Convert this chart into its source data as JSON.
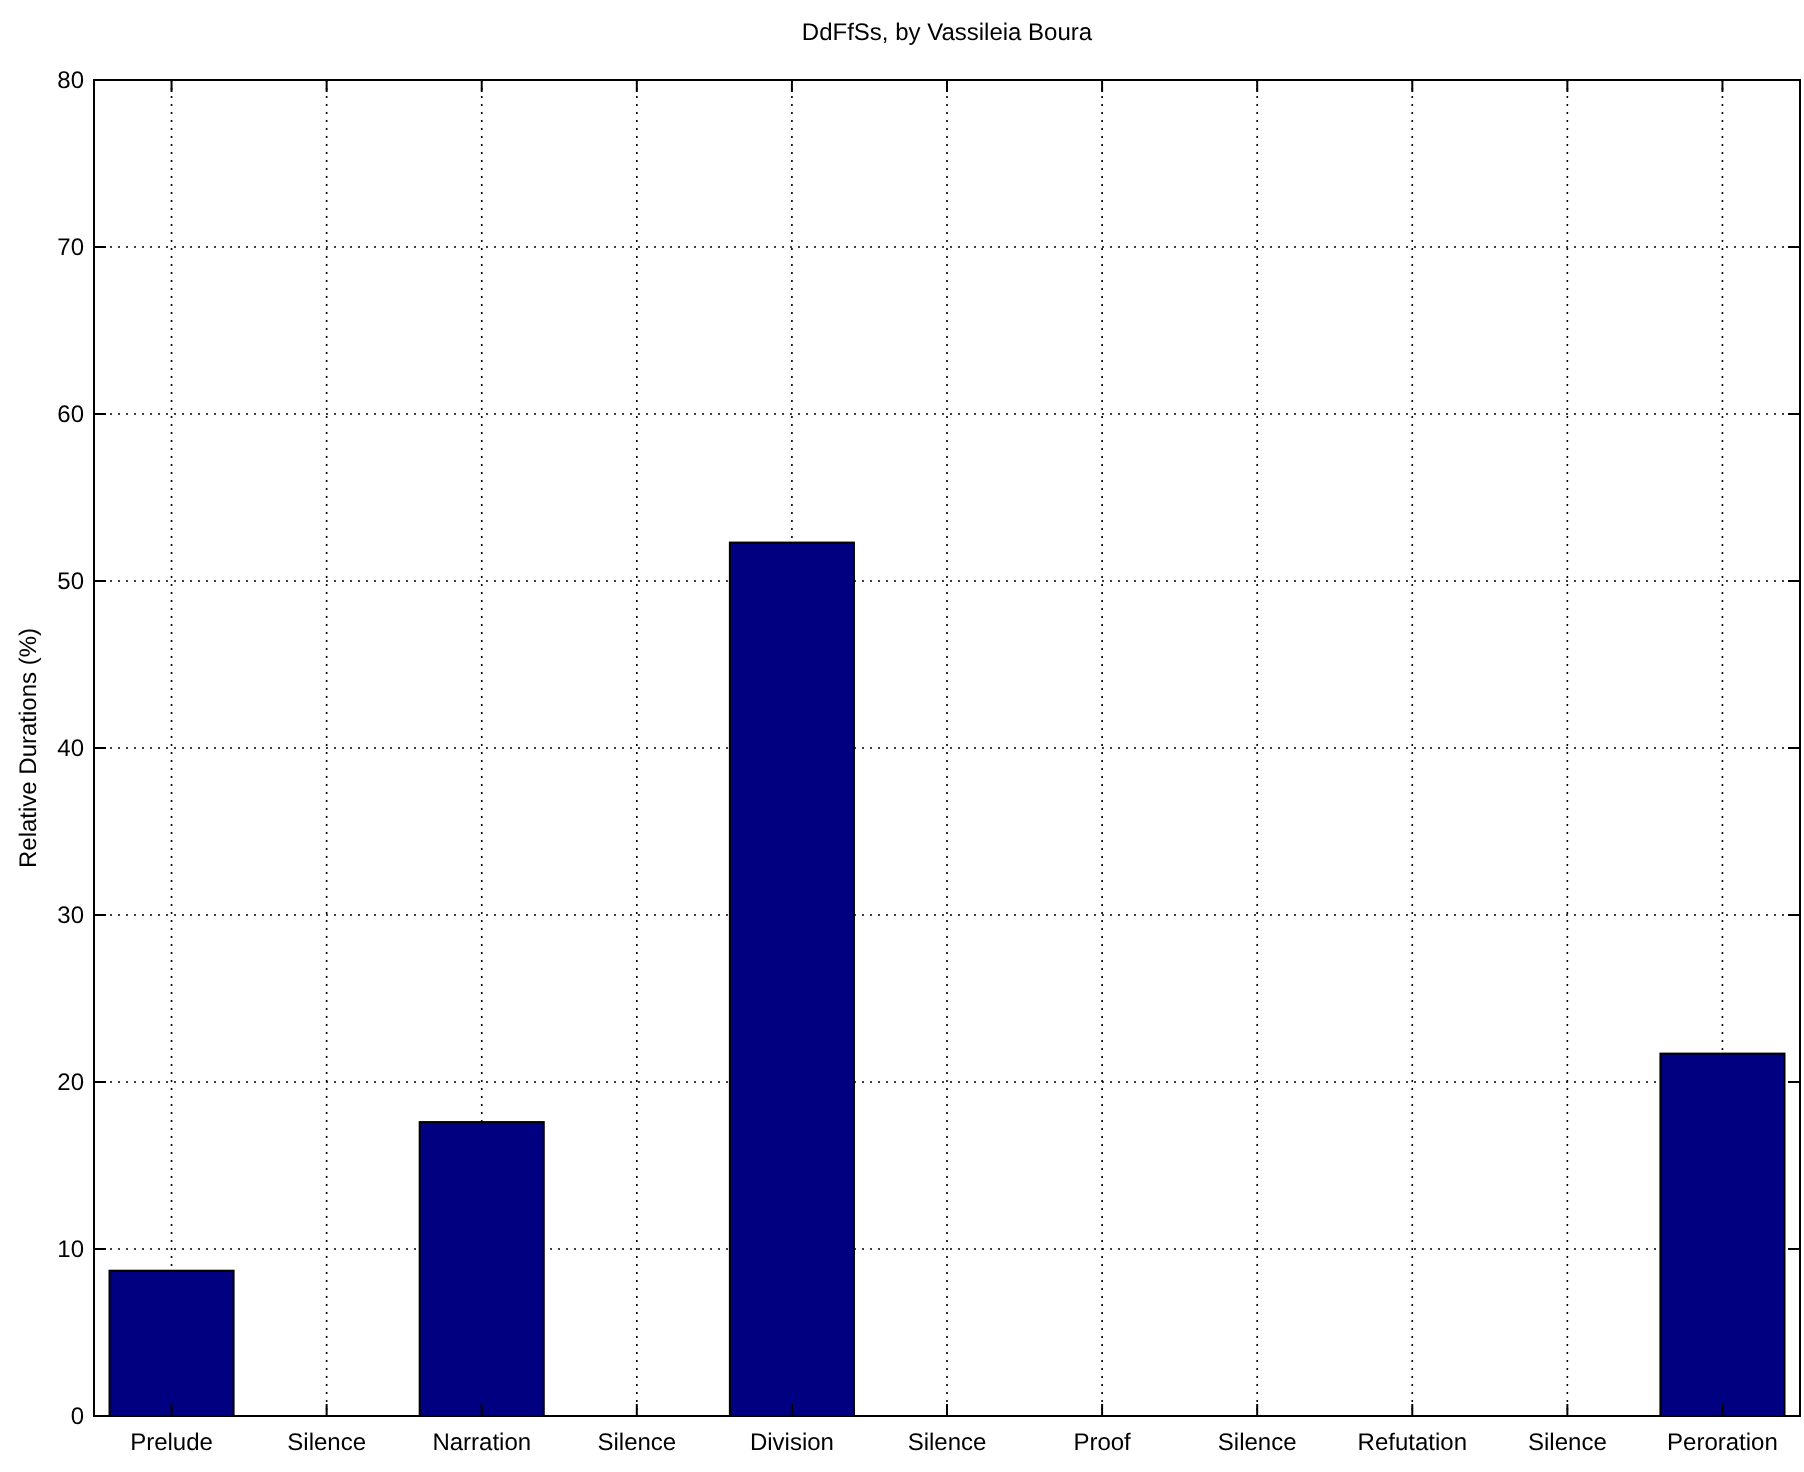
{
  "chart_data": {
    "type": "bar",
    "title": "DdFfSs, by Vassileia Boura",
    "ylabel": "Relative Durations (%)",
    "categories": [
      "Prelude",
      "Silence",
      "Narration",
      "Silence",
      "Division",
      "Silence",
      "Proof",
      "Silence",
      "Refutation",
      "Silence",
      "Peroration"
    ],
    "values": [
      8.7,
      0,
      17.6,
      0,
      52.3,
      0,
      0,
      0,
      0,
      0,
      21.7
    ],
    "color": "#000080",
    "ylim": [
      0,
      80
    ],
    "yticks": [
      0,
      10,
      20,
      30,
      40,
      50,
      60,
      70,
      80
    ],
    "grid": true
  }
}
